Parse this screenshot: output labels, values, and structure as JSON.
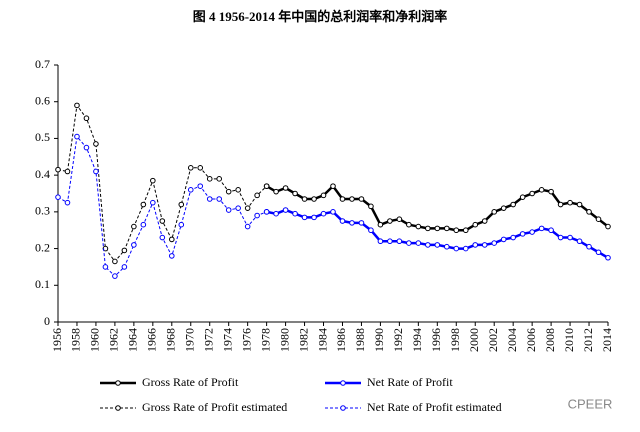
{
  "chart_data": {
    "type": "line",
    "title": "图 4 1956-2014 年中国的总利润率和净利润率",
    "watermark": "CPEER",
    "x": [
      1956,
      1957,
      1958,
      1959,
      1960,
      1961,
      1962,
      1963,
      1964,
      1965,
      1966,
      1967,
      1968,
      1969,
      1970,
      1971,
      1972,
      1973,
      1974,
      1975,
      1976,
      1977,
      1978,
      1979,
      1980,
      1981,
      1982,
      1983,
      1984,
      1985,
      1986,
      1987,
      1988,
      1989,
      1990,
      1991,
      1992,
      1993,
      1994,
      1995,
      1996,
      1997,
      1998,
      1999,
      2000,
      2001,
      2002,
      2003,
      2004,
      2005,
      2006,
      2007,
      2008,
      2009,
      2010,
      2011,
      2012,
      2013,
      2014
    ],
    "xlim": [
      1956,
      2014
    ],
    "xticks": [
      1956,
      1958,
      1960,
      1962,
      1964,
      1966,
      1968,
      1970,
      1972,
      1974,
      1976,
      1978,
      1980,
      1982,
      1984,
      1986,
      1988,
      1990,
      1992,
      1994,
      1996,
      1998,
      2000,
      2002,
      2004,
      2006,
      2008,
      2010,
      2012,
      2014
    ],
    "ylim": [
      0,
      0.7
    ],
    "yticks": [
      0,
      0.1,
      0.2,
      0.3,
      0.4,
      0.5,
      0.6,
      0.7
    ],
    "series": [
      {
        "name": "Gross Rate of Profit",
        "color": "#000000",
        "line_style": "solid",
        "values": [
          null,
          null,
          null,
          null,
          null,
          null,
          null,
          null,
          null,
          null,
          null,
          null,
          null,
          null,
          null,
          null,
          null,
          null,
          null,
          null,
          null,
          null,
          0.37,
          0.355,
          0.365,
          0.35,
          0.335,
          0.335,
          0.345,
          0.37,
          0.335,
          0.335,
          0.335,
          0.315,
          0.265,
          0.275,
          0.28,
          0.265,
          0.26,
          0.255,
          0.255,
          0.255,
          0.25,
          0.25,
          0.265,
          0.275,
          0.3,
          0.31,
          0.32,
          0.34,
          0.35,
          0.36,
          0.355,
          0.32,
          0.325,
          0.32,
          0.3,
          0.28,
          0.26
        ]
      },
      {
        "name": "Net Rate of Profit",
        "color": "#0000ff",
        "line_style": "solid",
        "values": [
          null,
          null,
          null,
          null,
          null,
          null,
          null,
          null,
          null,
          null,
          null,
          null,
          null,
          null,
          null,
          null,
          null,
          null,
          null,
          null,
          null,
          null,
          0.3,
          0.295,
          0.305,
          0.295,
          0.285,
          0.285,
          0.295,
          0.3,
          0.275,
          0.27,
          0.27,
          0.25,
          0.22,
          0.22,
          0.22,
          0.215,
          0.215,
          0.21,
          0.21,
          0.205,
          0.2,
          0.2,
          0.21,
          0.21,
          0.215,
          0.225,
          0.23,
          0.24,
          0.245,
          0.255,
          0.25,
          0.23,
          0.23,
          0.22,
          0.205,
          0.19,
          0.175
        ]
      },
      {
        "name": "Gross Rate of Profit estimated",
        "color": "#000000",
        "line_style": "dashed",
        "values": [
          0.415,
          0.41,
          0.59,
          0.555,
          0.485,
          0.2,
          0.165,
          0.195,
          0.26,
          0.32,
          0.385,
          0.275,
          0.225,
          0.32,
          0.42,
          0.42,
          0.39,
          0.39,
          0.355,
          0.36,
          0.31,
          0.345,
          0.37,
          null,
          null,
          null,
          null,
          null,
          null,
          null,
          null,
          null,
          null,
          null,
          null,
          null,
          null,
          null,
          null,
          null,
          null,
          null,
          null,
          null,
          null,
          null,
          null,
          null,
          null,
          null,
          null,
          null,
          null,
          null,
          null,
          null,
          null,
          null,
          null
        ]
      },
      {
        "name": "Net Rate of Profit estimated",
        "color": "#0000ff",
        "line_style": "dashed",
        "values": [
          0.34,
          0.325,
          0.505,
          0.475,
          0.41,
          0.15,
          0.125,
          0.15,
          0.21,
          0.265,
          0.325,
          0.23,
          0.18,
          0.265,
          0.36,
          0.37,
          0.335,
          0.335,
          0.305,
          0.31,
          0.26,
          0.29,
          0.3,
          null,
          null,
          null,
          null,
          null,
          null,
          null,
          null,
          null,
          null,
          null,
          null,
          null,
          null,
          null,
          null,
          null,
          null,
          null,
          null,
          null,
          null,
          null,
          null,
          null,
          null,
          null,
          null,
          null,
          null,
          null,
          null,
          null,
          null,
          null,
          null
        ]
      }
    ]
  }
}
